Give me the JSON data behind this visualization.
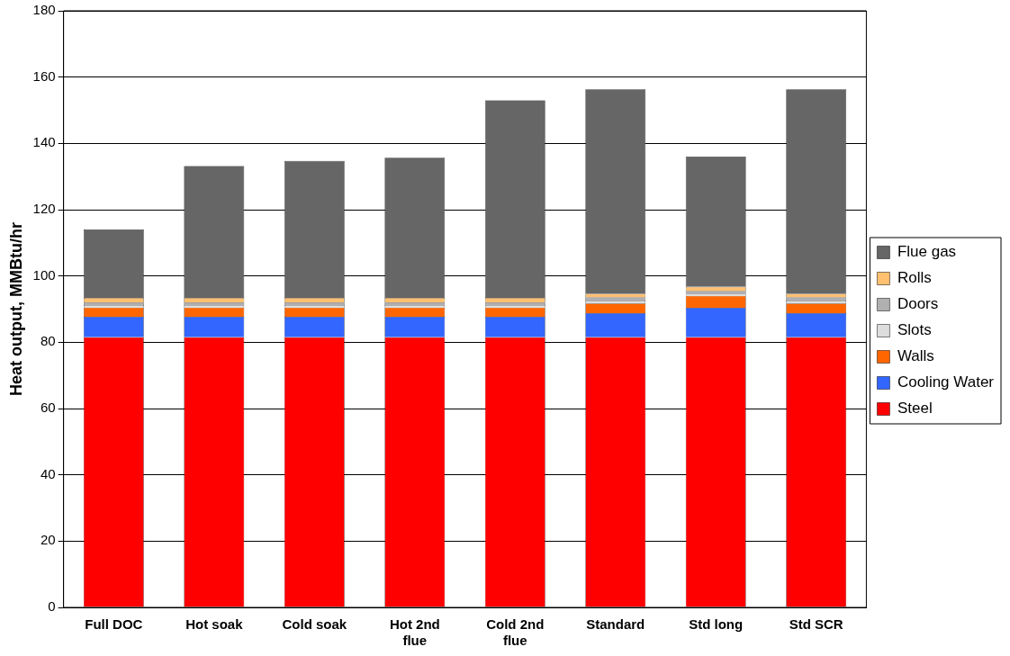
{
  "chart_data": {
    "type": "bar",
    "stacked": true,
    "ylabel": "Heat output, MMBtu/hr",
    "categories": [
      "Full DOC",
      "Hot soak",
      "Cold soak",
      "Hot 2nd flue",
      "Cold 2nd flue",
      "Standard",
      "Std long",
      "Std SCR"
    ],
    "series": [
      {
        "name": "Steel",
        "color": "#ff0000",
        "values": [
          81.5,
          81.5,
          81.5,
          81.5,
          81.5,
          81.5,
          81.5,
          81.5
        ]
      },
      {
        "name": "Cooling Water",
        "color": "#3366ff",
        "values": [
          6.2,
          6.2,
          6.2,
          6.2,
          6.2,
          7.3,
          8.9,
          7.3
        ]
      },
      {
        "name": "Walls",
        "color": "#ff6600",
        "values": [
          2.8,
          2.8,
          2.8,
          2.8,
          2.8,
          2.9,
          3.6,
          2.9
        ]
      },
      {
        "name": "Slots",
        "color": "#dddddd",
        "values": [
          0.7,
          0.7,
          0.7,
          0.7,
          0.7,
          0.9,
          0.6,
          0.9
        ]
      },
      {
        "name": "Doors",
        "color": "#b0b0b0",
        "values": [
          0.8,
          0.8,
          0.8,
          0.8,
          0.8,
          0.9,
          0.8,
          0.9
        ]
      },
      {
        "name": "Rolls",
        "color": "#ffc070",
        "values": [
          1.4,
          1.4,
          1.4,
          1.4,
          1.4,
          1.1,
          1.3,
          1.1
        ]
      },
      {
        "name": "Flue gas",
        "color": "#666666",
        "values": [
          20.6,
          39.8,
          41.3,
          42.3,
          59.6,
          61.7,
          39.3,
          61.7
        ]
      }
    ],
    "ylim": [
      0,
      180
    ],
    "yticks": [
      0,
      20,
      40,
      60,
      80,
      100,
      120,
      140,
      160,
      180
    ],
    "grid": "y",
    "legend": "right"
  }
}
